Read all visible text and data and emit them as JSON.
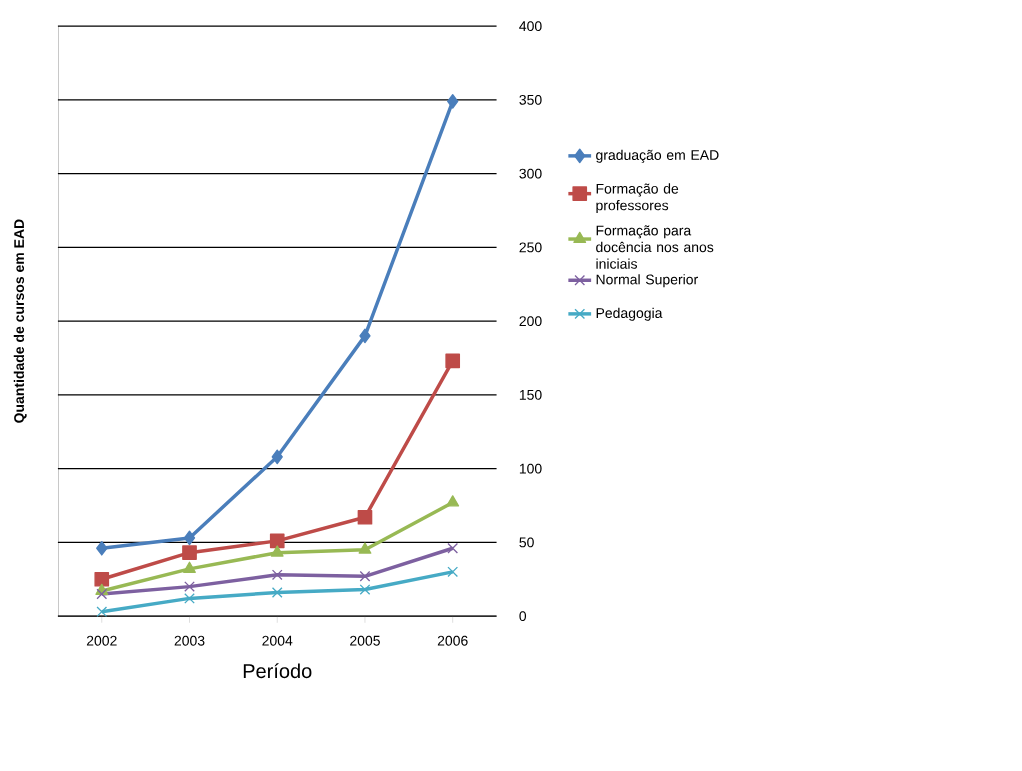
{
  "chart_data": {
    "type": "line",
    "xlabel": "Período",
    "ylabel": "Quantidade de cursos em EAD",
    "categories": [
      "2002",
      "2003",
      "2004",
      "2005",
      "2006"
    ],
    "series": [
      {
        "name": "graduação em EAD",
        "color": "#4a7ebb",
        "marker": "diamond",
        "values": [
          46,
          53,
          108,
          190,
          349
        ]
      },
      {
        "name": "Formação de professores",
        "color": "#be4b48",
        "marker": "square",
        "values": [
          25,
          43,
          51,
          67,
          173
        ]
      },
      {
        "name": "Formação para docência nos anos iniciais",
        "color": "#98b954",
        "marker": "triangle",
        "values": [
          17,
          32,
          43,
          45,
          77
        ]
      },
      {
        "name": "Normal Superior",
        "color": "#7d60a0",
        "marker": "cross",
        "values": [
          15,
          20,
          28,
          27,
          46
        ]
      },
      {
        "name": "Pedagogia",
        "color": "#46aac5",
        "marker": "cross",
        "values": [
          3,
          12,
          16,
          18,
          30
        ]
      }
    ],
    "ylim": [
      0,
      400
    ],
    "yticks": [
      0,
      50,
      100,
      150,
      200,
      250,
      300,
      350,
      400
    ],
    "grid": "y",
    "legend": "right",
    "line_style": "solid"
  }
}
